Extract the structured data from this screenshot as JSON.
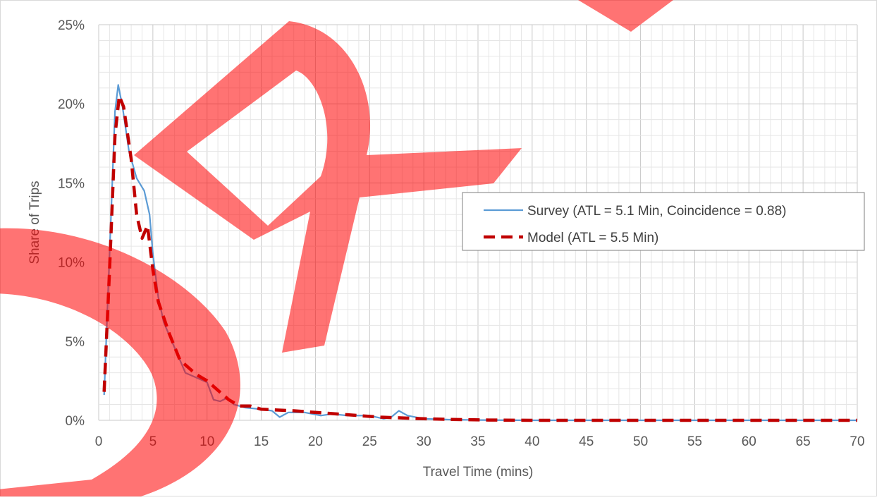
{
  "chart_data": {
    "type": "line",
    "title": "",
    "xlabel": "Travel Time (mins)",
    "ylabel": "Share of Trips",
    "xlim": [
      0,
      70
    ],
    "ylim": [
      0,
      25
    ],
    "x_ticks": [
      "0",
      "5",
      "10",
      "15",
      "20",
      "25",
      "30",
      "35",
      "40",
      "45",
      "50",
      "55",
      "60",
      "65",
      "70"
    ],
    "y_ticks": [
      "0%",
      "5%",
      "10%",
      "15%",
      "20%",
      "25%"
    ],
    "grid": "major and minor",
    "legend_position": "right",
    "watermark": "DRAFT",
    "series": [
      {
        "name": "Survey (ATL = 5.1 Min, Coincidence = 0.88)",
        "color": "#5b9bd5",
        "style": "solid",
        "points": [
          [
            0.5,
            1.6
          ],
          [
            1.0,
            10.5
          ],
          [
            1.5,
            19.5
          ],
          [
            1.8,
            21.2
          ],
          [
            2.2,
            19.8
          ],
          [
            2.8,
            17.0
          ],
          [
            3.5,
            15.3
          ],
          [
            4.2,
            14.5
          ],
          [
            4.7,
            13.0
          ],
          [
            5.0,
            10.5
          ],
          [
            5.5,
            7.8
          ],
          [
            6.0,
            6.2
          ],
          [
            7.0,
            4.6
          ],
          [
            7.5,
            3.8
          ],
          [
            8.0,
            3.0
          ],
          [
            9.0,
            2.7
          ],
          [
            10.0,
            2.4
          ],
          [
            10.6,
            1.3
          ],
          [
            11.2,
            1.2
          ],
          [
            11.8,
            1.4
          ],
          [
            12.5,
            1.0
          ],
          [
            13.5,
            0.8
          ],
          [
            15.0,
            0.7
          ],
          [
            16.0,
            0.6
          ],
          [
            16.7,
            0.2
          ],
          [
            17.5,
            0.5
          ],
          [
            19.0,
            0.5
          ],
          [
            20.5,
            0.3
          ],
          [
            21.5,
            0.4
          ],
          [
            23.0,
            0.3
          ],
          [
            25.0,
            0.3
          ],
          [
            26.3,
            0.1
          ],
          [
            27.0,
            0.2
          ],
          [
            27.7,
            0.6
          ],
          [
            28.5,
            0.3
          ],
          [
            30.0,
            0.1
          ],
          [
            32.0,
            0.05
          ],
          [
            35.0,
            0.02
          ],
          [
            40.0,
            0.0
          ],
          [
            50.0,
            0.0
          ],
          [
            60.0,
            0.0
          ],
          [
            70.0,
            0.0
          ]
        ]
      },
      {
        "name": "Model (ATL = 5.5 Min)",
        "color": "#c00000",
        "style": "dashed",
        "points": [
          [
            0.5,
            1.8
          ],
          [
            1.0,
            9.5
          ],
          [
            1.5,
            18.0
          ],
          [
            1.9,
            20.5
          ],
          [
            2.3,
            19.8
          ],
          [
            3.0,
            16.5
          ],
          [
            3.5,
            13.0
          ],
          [
            4.0,
            11.5
          ],
          [
            4.5,
            12.3
          ],
          [
            5.0,
            9.5
          ],
          [
            5.5,
            7.5
          ],
          [
            6.5,
            5.5
          ],
          [
            7.5,
            3.8
          ],
          [
            9.0,
            2.9
          ],
          [
            10.0,
            2.5
          ],
          [
            11.0,
            1.9
          ],
          [
            12.0,
            1.3
          ],
          [
            13.0,
            0.9
          ],
          [
            14.0,
            0.9
          ],
          [
            15.0,
            0.7
          ],
          [
            18.0,
            0.6
          ],
          [
            20.0,
            0.5
          ],
          [
            22.0,
            0.4
          ],
          [
            24.0,
            0.3
          ],
          [
            26.0,
            0.2
          ],
          [
            28.0,
            0.15
          ],
          [
            30.0,
            0.1
          ],
          [
            33.0,
            0.05
          ],
          [
            36.0,
            0.02
          ],
          [
            40.0,
            0.0
          ],
          [
            50.0,
            0.0
          ],
          [
            60.0,
            0.0
          ],
          [
            70.0,
            0.0
          ]
        ]
      }
    ]
  }
}
